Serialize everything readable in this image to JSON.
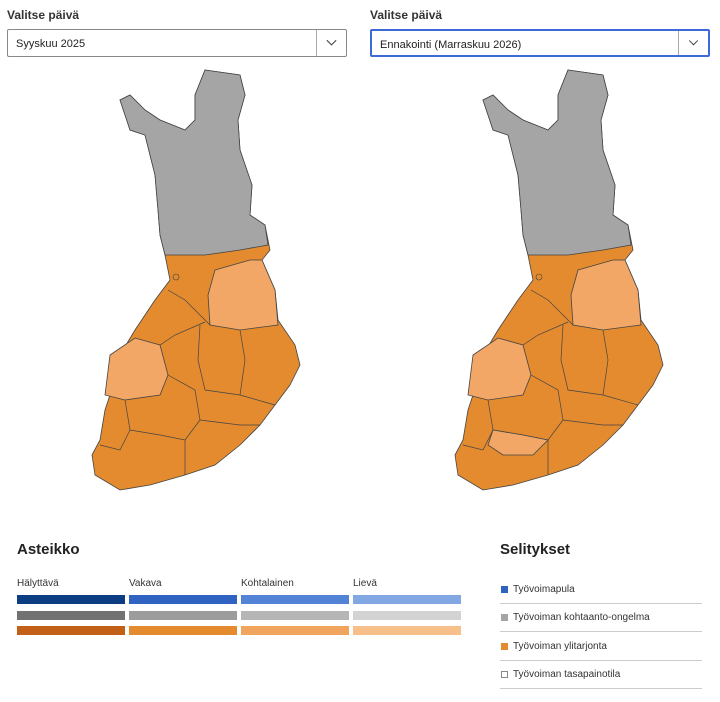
{
  "filters": [
    {
      "label": "Valitse päivä",
      "value": "Syyskuu 2025"
    },
    {
      "label": "Valitse päivä",
      "value": "Ennakointi (Marraskuu 2026)"
    }
  ],
  "scale": {
    "title": "Asteikko",
    "levels": [
      "Hälyttävä",
      "Vakava",
      "Kohtalainen",
      "Lievä"
    ]
  },
  "legend": {
    "title": "Selitykset",
    "items": [
      "Työvoimapula",
      "Työvoiman kohtaanto-ongelma",
      "Työvoiman ylitarjonta",
      "Työvoiman tasapainotila"
    ]
  }
}
